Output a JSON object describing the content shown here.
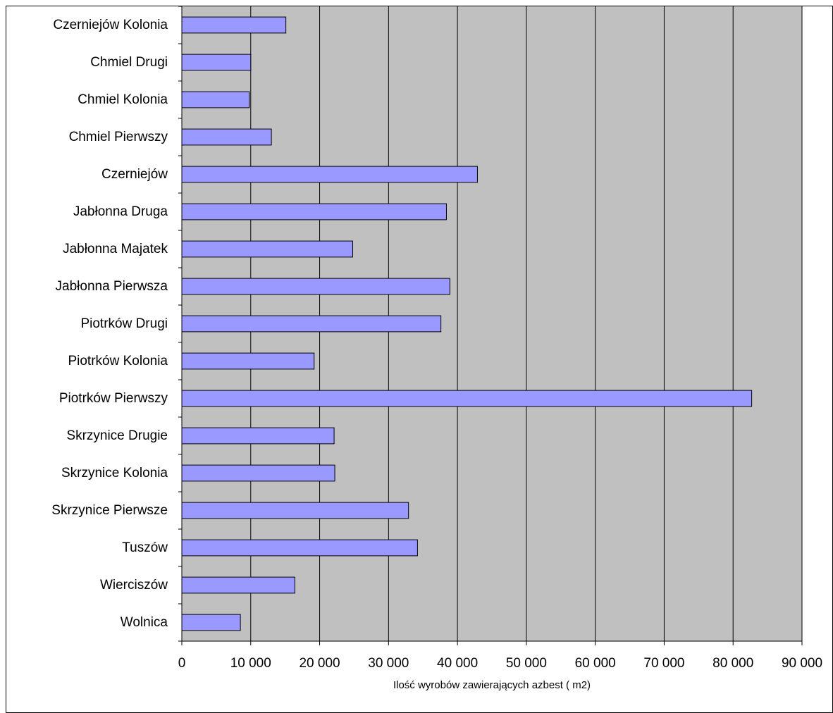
{
  "chart_data": {
    "type": "bar",
    "orientation": "horizontal",
    "categories": [
      "Czerniejów Kolonia",
      "Chmiel Drugi",
      "Chmiel Kolonia",
      "Chmiel Pierwszy",
      "Czerniejów",
      "Jabłonna Druga",
      "Jabłonna Majatek",
      "Jabłonna Pierwsza",
      "Piotrków Drugi",
      "Piotrków Kolonia",
      "Piotrków Pierwszy",
      "Skrzynice Drugie",
      "Skrzynice Kolonia",
      "Skrzynice Pierwsze",
      "Tuszów",
      "Wierciszów",
      "Wolnica"
    ],
    "values": [
      15100,
      10000,
      9800,
      13000,
      42900,
      38400,
      24800,
      38900,
      37600,
      19200,
      82700,
      22100,
      22200,
      32900,
      34200,
      16400,
      8500
    ],
    "xlabel": "Ilość wyrobów zawierających azbest ( m2)",
    "ylabel": "",
    "xlim": [
      0,
      90000
    ],
    "xticks": [
      0,
      10000,
      20000,
      30000,
      40000,
      50000,
      60000,
      70000,
      80000,
      90000
    ],
    "xtick_labels": [
      "0",
      "10 000",
      "20 000",
      "30 000",
      "40 000",
      "50 000",
      "60 000",
      "70 000",
      "80 000",
      "90 000"
    ],
    "grid": "vertical major gridlines",
    "legend": "none",
    "colors": {
      "bar_fill": "#9999ff",
      "bar_stroke": "#000000",
      "plot_background": "#c0c0c0",
      "gridline": "#000000"
    }
  }
}
